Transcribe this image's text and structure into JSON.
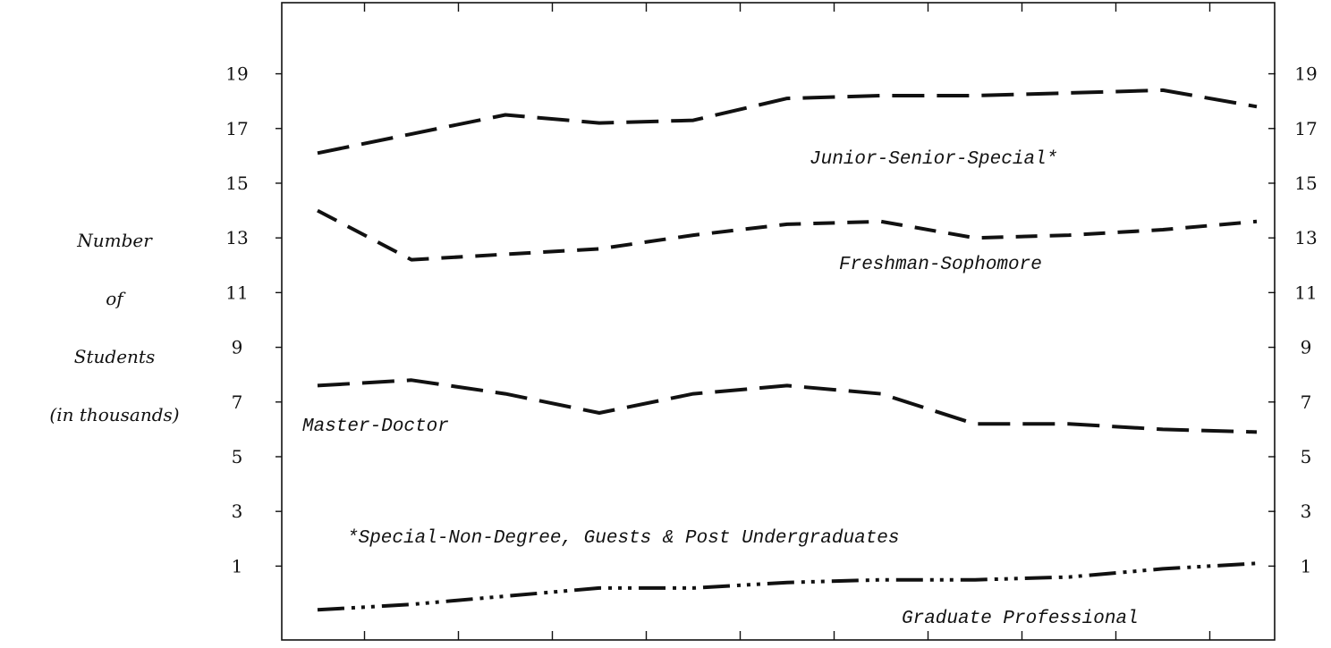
{
  "chart_data": {
    "type": "line",
    "ylabel_lines": [
      "Number",
      "of",
      "Students",
      "(in thousands)"
    ],
    "y_ticks_left": [
      19,
      17,
      15,
      13,
      11,
      9,
      7,
      5,
      3,
      1
    ],
    "y_ticks_right": [
      19,
      17,
      15,
      13,
      11,
      9,
      7,
      5,
      3,
      1
    ],
    "ylim": [
      -1.7,
      21.6
    ],
    "x_count": 11,
    "grid": false,
    "series": [
      {
        "name": "Junior-Senior-Special*",
        "line_style": "long-dash",
        "values": [
          16.1,
          16.8,
          17.5,
          17.2,
          17.3,
          18.1,
          18.2,
          18.2,
          18.3,
          18.4,
          17.8
        ]
      },
      {
        "name": "Freshman-Sophomore",
        "line_style": "dash",
        "values": [
          14.0,
          12.2,
          12.4,
          12.6,
          13.1,
          13.5,
          13.6,
          13.0,
          13.1,
          13.3,
          13.6
        ]
      },
      {
        "name": "Master-Doctor",
        "line_style": "long-dash",
        "values": [
          7.6,
          7.8,
          7.3,
          6.6,
          7.3,
          7.6,
          7.3,
          6.2,
          6.2,
          6.0,
          5.9
        ]
      },
      {
        "name": "Graduate Professional",
        "line_style": "dash-dot-dot",
        "values": [
          -0.6,
          -0.4,
          -0.1,
          0.2,
          0.2,
          0.4,
          0.5,
          0.5,
          0.6,
          0.9,
          1.1
        ]
      }
    ],
    "footnote": "*Special-Non-Degree, Guests & Post Undergraduates"
  }
}
